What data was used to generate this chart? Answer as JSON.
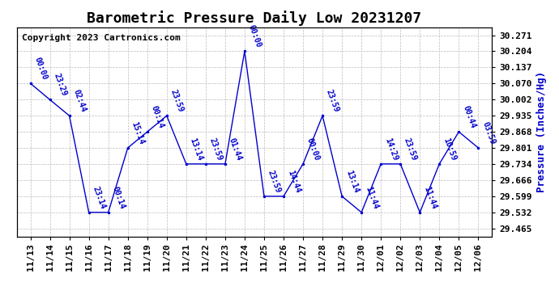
{
  "title": "Barometric Pressure Daily Low 20231207",
  "ylabel": "Pressure (Inches/Hg)",
  "copyright": "Copyright 2023 Cartronics.com",
  "background_color": "#ffffff",
  "line_color": "#0000cc",
  "text_color": "#0000cc",
  "grid_color": "#bbbbbb",
  "ylim_min": 29.432,
  "ylim_max": 30.304,
  "yticks": [
    29.465,
    29.532,
    29.599,
    29.666,
    29.734,
    29.801,
    29.868,
    29.935,
    30.002,
    30.07,
    30.137,
    30.204,
    30.271
  ],
  "dates": [
    "11/13",
    "11/14",
    "11/15",
    "11/16",
    "11/17",
    "11/18",
    "11/19",
    "11/20",
    "11/21",
    "11/22",
    "11/23",
    "11/24",
    "11/25",
    "11/26",
    "11/27",
    "11/28",
    "11/29",
    "11/30",
    "12/01",
    "12/02",
    "12/03",
    "12/04",
    "12/05",
    "12/06"
  ],
  "values": [
    30.07,
    30.002,
    29.935,
    29.532,
    29.532,
    29.801,
    29.868,
    29.935,
    29.734,
    29.734,
    29.734,
    30.204,
    29.599,
    29.599,
    29.734,
    29.935,
    29.599,
    29.532,
    29.734,
    29.734,
    29.532,
    29.734,
    29.868,
    29.801
  ],
  "point_labels": [
    "00:00",
    "23:29",
    "02:44",
    "23:14",
    "00:14",
    "15:14",
    "00:14",
    "23:59",
    "13:14",
    "23:59",
    "01:44",
    "00:00",
    "23:59",
    "14:44",
    "00:00",
    "23:59",
    "13:14",
    "11:44",
    "14:29",
    "23:59",
    "11:44",
    "10:59",
    "00:44",
    "03:59"
  ],
  "last_label": "23:59",
  "title_fontsize": 13,
  "axis_fontsize": 8,
  "point_label_fontsize": 7,
  "copyright_fontsize": 8,
  "ylabel_fontsize": 9
}
